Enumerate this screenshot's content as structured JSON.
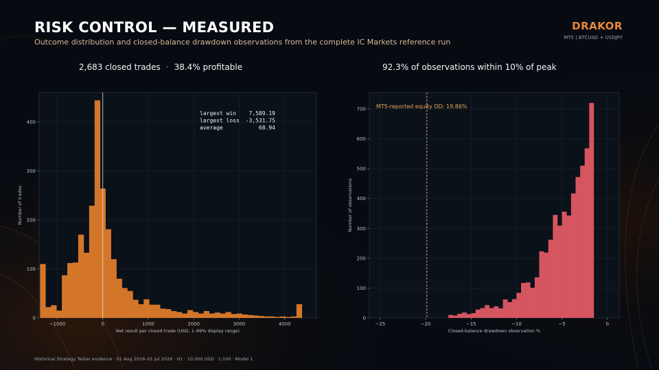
{
  "header": {
    "title": "RISK CONTROL — MEASURED",
    "subtitle": "Outcome distribution and closed-balance drawdown observations from the complete IC Markets reference run",
    "brand": "DRAKOR",
    "brand_sub": "MT5  |  BTCUSD + USDJPY"
  },
  "stats": {
    "trades": "2,683 closed trades",
    "separator": "·",
    "profitable": "38.4% profitable",
    "within_peak": "92.3% of observations within 10% of peak"
  },
  "footer": "Historical Strategy Tester evidence · 01 Aug 2018–01 Jul 2026 · H1 · 10,000 USD · 1:100 · Model 1",
  "colors": {
    "accent": "#e9883c",
    "hist_bar": "#d4762a",
    "dd_bar": "#d55560",
    "panel_bg": "#0a1119",
    "grid": "#1d2731",
    "vline": "#f0e6da",
    "dashed_line": "#e9a85a"
  },
  "chart_data": [
    {
      "type": "bar",
      "subtype": "histogram",
      "title": "",
      "xlabel": "Net result per closed trade (USD, 1–99% display range)",
      "ylabel": "Number of trades",
      "xlim": [
        -1400,
        4700
      ],
      "ylim": [
        0,
        460
      ],
      "xticks": [
        -1000,
        0,
        1000,
        2000,
        3000,
        4000
      ],
      "yticks": [
        0,
        100,
        200,
        300,
        400
      ],
      "bin_width": 120,
      "bin_start": -1380,
      "values": [
        110,
        22,
        26,
        15,
        87,
        112,
        113,
        170,
        133,
        229,
        444,
        264,
        181,
        120,
        80,
        61,
        55,
        37,
        28,
        38,
        27,
        27,
        19,
        18,
        14,
        12,
        9,
        16,
        12,
        9,
        14,
        9,
        11,
        9,
        12,
        8,
        9,
        7,
        6,
        5,
        4,
        3,
        3,
        2,
        3,
        2,
        3,
        28
      ],
      "vline_x": 0,
      "grid": true,
      "annotations": [
        {
          "label": "largest win",
          "value": "7,589.19"
        },
        {
          "label": "largest loss",
          "value": "-3,531.75"
        },
        {
          "label": "average",
          "value": "68.94"
        }
      ]
    },
    {
      "type": "bar",
      "subtype": "histogram",
      "title": "",
      "xlabel": "Closed-balance drawdown observation %",
      "ylabel": "Number of observations",
      "xlim": [
        -26.2,
        1.3
      ],
      "ylim": [
        0,
        755
      ],
      "xticks": [
        -25,
        -20,
        -15,
        -10,
        -5,
        0
      ],
      "yticks": [
        0,
        100,
        200,
        300,
        400,
        500,
        600,
        700
      ],
      "bin_width": 0.5,
      "bin_start": -17.5,
      "values": [
        10,
        8,
        14,
        18,
        13,
        16,
        28,
        33,
        43,
        33,
        39,
        32,
        62,
        53,
        63,
        84,
        117,
        119,
        101,
        136,
        223,
        219,
        262,
        345,
        309,
        356,
        343,
        417,
        472,
        510,
        568,
        720
      ],
      "vline_x": -19.86,
      "vline_label": "MT5-reported equity DD: 19.86%",
      "grid": true
    }
  ]
}
